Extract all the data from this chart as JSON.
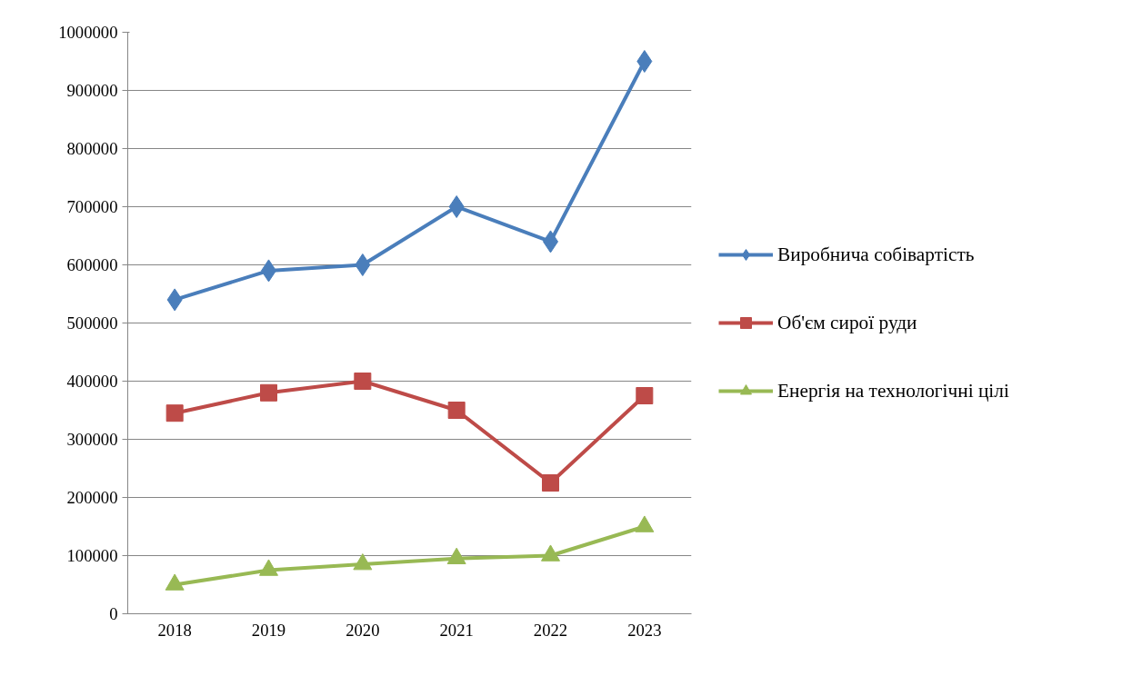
{
  "chart_data": {
    "type": "line",
    "categories": [
      "2018",
      "2019",
      "2020",
      "2021",
      "2022",
      "2023"
    ],
    "series": [
      {
        "name": "Виробнича собівартість",
        "color": "#4a7ebb",
        "marker": "diamond",
        "values": [
          540000,
          590000,
          600000,
          700000,
          640000,
          950000
        ]
      },
      {
        "name": "Об'єм сирої руди",
        "color": "#be4b48",
        "marker": "square",
        "values": [
          345000,
          380000,
          400000,
          350000,
          225000,
          375000
        ]
      },
      {
        "name": "Енергія на технологічні цілі",
        "color": "#98b954",
        "marker": "triangle",
        "values": [
          50000,
          75000,
          85000,
          95000,
          100000,
          150000
        ]
      }
    ],
    "ylim": [
      0,
      1000000
    ],
    "yticks": [
      0,
      100000,
      200000,
      300000,
      400000,
      500000,
      600000,
      700000,
      800000,
      900000,
      1000000
    ],
    "grid": "y",
    "legend": "right",
    "line_style": "solid"
  }
}
